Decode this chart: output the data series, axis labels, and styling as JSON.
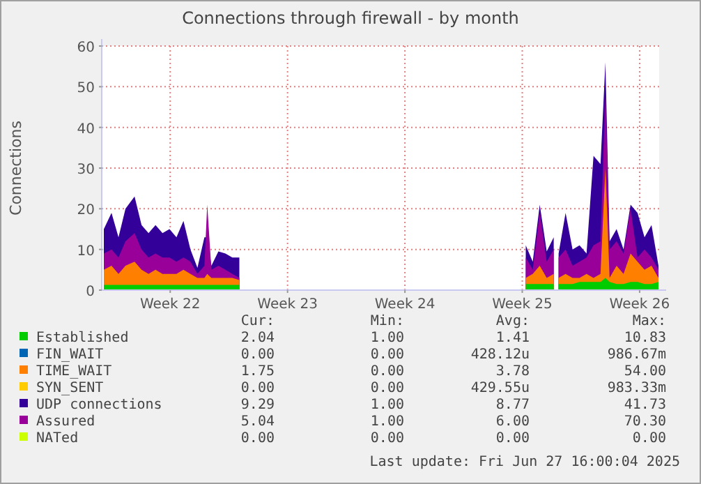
{
  "chart_data": {
    "type": "area",
    "title": "Connections through firewall - by month",
    "ylabel": "Connections",
    "x": [
      "2025-05-25T13:00",
      "2025-05-26T00:00",
      "2025-05-26T10:00",
      "2025-05-26T20:00",
      "2025-05-27T09:00",
      "2025-05-27T19:00",
      "2025-05-28T05:00",
      "2025-05-28T15:00",
      "2025-05-29T01:00",
      "2025-05-29T11:00",
      "2025-05-29T21:00",
      "2025-05-30T07:00",
      "2025-05-30T17:00",
      "2025-05-31T03:00",
      "2025-05-31T13:00",
      "2025-05-31T17:00",
      "2025-05-31T23:00",
      "2025-06-01T09:00",
      "2025-06-01T19:00",
      "2025-06-02T05:00",
      "2025-06-02T15:00",
      "2025-06-03T00:00",
      "2025-06-19T17:00",
      "2025-06-20T03:00",
      "2025-06-20T13:00",
      "2025-06-20T23:00",
      "2025-06-21T09:00",
      "2025-06-21T12:00",
      "2025-06-21T16:00",
      "2025-06-22T02:00",
      "2025-06-22T12:00",
      "2025-06-22T22:00",
      "2025-06-23T08:00",
      "2025-06-23T18:00",
      "2025-06-24T04:00",
      "2025-06-24T11:00",
      "2025-06-24T17:00",
      "2025-06-25T03:00",
      "2025-06-25T13:00",
      "2025-06-25T23:00",
      "2025-06-26T09:00",
      "2025-06-26T19:00",
      "2025-06-27T05:00",
      "2025-06-27T15:00"
    ],
    "xlim": [
      "2025-05-25T10:00",
      "2025-06-27T16:00"
    ],
    "xticks": [
      {
        "value": "2025-05-29T12:00",
        "label": "Week 22"
      },
      {
        "value": "2025-06-05T12:00",
        "label": "Week 23"
      },
      {
        "value": "2025-06-12T12:00",
        "label": "Week 24"
      },
      {
        "value": "2025-06-19T12:00",
        "label": "Week 25"
      },
      {
        "value": "2025-06-26T12:00",
        "label": "Week 26"
      }
    ],
    "ylim": [
      0,
      60
    ],
    "yticks": [
      0,
      10,
      20,
      30,
      40,
      50,
      60
    ],
    "grid": true,
    "legend": "bottom",
    "series": [
      {
        "name": "Established",
        "color": "#00cc00",
        "values": [
          1.3,
          1.3,
          1.3,
          1.3,
          1.3,
          1.3,
          1.3,
          1.3,
          1.3,
          1.3,
          1.3,
          1.3,
          1.3,
          1.3,
          1.3,
          1.3,
          1.3,
          1.3,
          1.3,
          1.3,
          1.3,
          null,
          1.5,
          1.5,
          1.5,
          1.5,
          1.5,
          null,
          1.5,
          1.5,
          1.5,
          2,
          2,
          2,
          2,
          3,
          2,
          1.5,
          1.5,
          2,
          2,
          1.5,
          1.5,
          2
        ]
      },
      {
        "name": "FIN_WAIT",
        "color": "#0066b3",
        "values": [
          null,
          null,
          null,
          null,
          null,
          null,
          null,
          null,
          null,
          null,
          null,
          null,
          null,
          null,
          null,
          null,
          null,
          null,
          null,
          null,
          null,
          null,
          null,
          null,
          null,
          null,
          null,
          null,
          null,
          null,
          null,
          null,
          null,
          null,
          null,
          null,
          null,
          null,
          null,
          null,
          null,
          null,
          null,
          null
        ]
      },
      {
        "name": "TIME_WAIT",
        "color": "#ff8000",
        "values": [
          5,
          6,
          4,
          6,
          7,
          5,
          4,
          5,
          4,
          4,
          4,
          5,
          4,
          3,
          3,
          4,
          3,
          3,
          3,
          3,
          2.5,
          null,
          3,
          4,
          6,
          3,
          4,
          null,
          3,
          4,
          3,
          3,
          4,
          3,
          4,
          30,
          3,
          6,
          4,
          9,
          7,
          5,
          6,
          3
        ]
      },
      {
        "name": "SYN_SENT",
        "color": "#ffcc00",
        "values": [
          null,
          null,
          null,
          null,
          null,
          null,
          null,
          null,
          null,
          null,
          null,
          null,
          null,
          null,
          null,
          null,
          null,
          null,
          null,
          null,
          null,
          null,
          null,
          null,
          null,
          null,
          null,
          null,
          null,
          null,
          null,
          null,
          null,
          null,
          null,
          null,
          null,
          null,
          null,
          null,
          null,
          null,
          null,
          null
        ]
      },
      {
        "name": "UDP connections",
        "color": "#330099",
        "values": [
          15,
          19,
          13,
          20,
          23,
          16,
          14,
          16,
          14,
          15,
          13,
          17,
          10,
          5.5,
          13,
          13,
          6,
          9.5,
          9,
          8,
          8,
          null,
          11,
          7,
          21,
          9.5,
          13,
          null,
          9,
          19,
          10,
          11,
          9,
          33,
          31,
          56,
          12,
          15,
          10,
          21,
          19,
          13,
          16,
          6
        ]
      },
      {
        "name": "Assured",
        "color": "#990099",
        "values": [
          9,
          10,
          8,
          12,
          14,
          10,
          8,
          9,
          8,
          8,
          7,
          8,
          7,
          4,
          6,
          21,
          5,
          6,
          5,
          4,
          3,
          null,
          8,
          5,
          19,
          7,
          10,
          null,
          8,
          10,
          6,
          7,
          8,
          11,
          12,
          48,
          10,
          12,
          9,
          20,
          8,
          10,
          8,
          5
        ]
      },
      {
        "name": "NATed",
        "color": "#ccff00",
        "values": [
          null,
          null,
          null,
          null,
          null,
          null,
          null,
          null,
          null,
          null,
          null,
          null,
          null,
          null,
          null,
          null,
          null,
          null,
          null,
          null,
          null,
          null,
          null,
          null,
          null,
          null,
          null,
          null,
          null,
          null,
          null,
          null,
          null,
          null,
          null,
          null,
          null,
          null,
          null,
          null,
          null,
          null,
          null,
          null
        ]
      }
    ],
    "annotations": [
      "Cur:",
      "Min:",
      "Avg:",
      "Max:",
      "2.04",
      "1.00",
      "1.41",
      "10.83",
      "0.00",
      "0.00",
      "428.12u",
      "986.67m",
      "1.75",
      "0.00",
      "3.78",
      "54.00",
      "0.00",
      "0.00",
      "429.55u",
      "983.33m",
      "9.29",
      "1.00",
      "8.77",
      "41.73",
      "5.04",
      "1.00",
      "6.00",
      "70.30",
      "0.00",
      "0.00",
      "0.00",
      "0.00",
      "Last update: Fri Jun 27 16:00:04 2025"
    ]
  }
}
